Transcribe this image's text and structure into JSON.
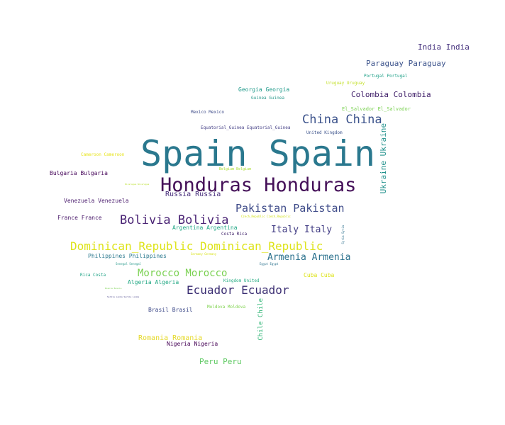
{
  "words": [
    {
      "text": "Spain Spain",
      "color": "#2a788e"
    },
    {
      "text": "Honduras Honduras",
      "color": "#440f58"
    },
    {
      "text": "China China",
      "color": "#3b528b"
    },
    {
      "text": "Pakistan Pakistan",
      "color": "#3e4b89"
    },
    {
      "text": "Bolivia Bolivia",
      "color": "#482173"
    },
    {
      "text": "Dominican_Republic Dominican_Republic",
      "color": "#dde318"
    },
    {
      "text": "Ecuador Ecuador",
      "color": "#3a2d72"
    },
    {
      "text": "Morocco Morocco",
      "color": "#7ad151"
    },
    {
      "text": "Italy Italy",
      "color": "#433e85"
    },
    {
      "text": "Armenia Armenia",
      "color": "#2c728e"
    },
    {
      "text": "India India",
      "color": "#46327e"
    },
    {
      "text": "Paraguay Paraguay",
      "color": "#3b528b"
    },
    {
      "text": "Colombia Colombia",
      "color": "#3d1c67"
    },
    {
      "text": "Ukraine Ukraine",
      "color": "#21918c"
    },
    {
      "text": "Russia Russia",
      "color": "#472d7b"
    },
    {
      "text": "Peru Peru",
      "color": "#5ec962"
    },
    {
      "text": "Romania Romania",
      "color": "#e5d92a"
    },
    {
      "text": "Chile Chile",
      "color": "#35b779"
    },
    {
      "text": "Georgia Georgia",
      "color": "#1f9a8a"
    },
    {
      "text": "Venezuela Venezuela",
      "color": "#481a6c"
    },
    {
      "text": "Bulgaria Bulgaria",
      "color": "#450559"
    },
    {
      "text": "Philippines Philippines",
      "color": "#2a788e"
    },
    {
      "text": "Algeria Algeria",
      "color": "#22a884"
    },
    {
      "text": "Brasil Brasil",
      "color": "#3e4a89"
    },
    {
      "text": "Nigeria Nigeria",
      "color": "#440154"
    },
    {
      "text": "France France",
      "color": "#481769"
    },
    {
      "text": "Argentina Argentina",
      "color": "#22a785"
    },
    {
      "text": "Cuba Cuba",
      "color": "#dde318"
    },
    {
      "text": "El_Salvador El_Salvador",
      "color": "#7ad151"
    },
    {
      "text": "Mexico Mexico",
      "color": "#3e4b89"
    },
    {
      "text": "Equatorial_Guinea Equatorial_Guinea",
      "color": "#433e85"
    },
    {
      "text": "United Kingdom",
      "color": "#3b528b"
    },
    {
      "text": "Guinea Guinea",
      "color": "#2a9a8c"
    },
    {
      "text": "Portugal Portugal",
      "color": "#1fa088"
    },
    {
      "text": "Uruguay Uruguay",
      "color": "#c2df23"
    },
    {
      "text": "Cameroon Cameroon",
      "color": "#e7e419"
    },
    {
      "text": "Belgium Belgium",
      "color": "#aadc32"
    },
    {
      "text": "Costa Rica",
      "color": "#3b1c66"
    },
    {
      "text": "Rica Costa",
      "color": "#20a386"
    },
    {
      "text": "Kingdom United",
      "color": "#25ac82"
    },
    {
      "text": "Moldova Moldova",
      "color": "#7fd34e"
    },
    {
      "text": "Nicaragua Nicaragua",
      "color": "#b8de29"
    },
    {
      "text": "Syria Syria",
      "color": "#2d708e"
    },
    {
      "text": "Czech_Republic Czech_Republic",
      "color": "#d2e21b"
    },
    {
      "text": "Germany Germany",
      "color": "#d8e219"
    },
    {
      "text": "Egypt Egypt",
      "color": "#2c728e"
    },
    {
      "text": "Senegal Senegal",
      "color": "#2a9a8c"
    },
    {
      "text": "Bosnia Bosnia",
      "color": "#7ad151"
    },
    {
      "text": "Serbia Lanka Serbia Lanka",
      "color": "#433e85"
    }
  ]
}
